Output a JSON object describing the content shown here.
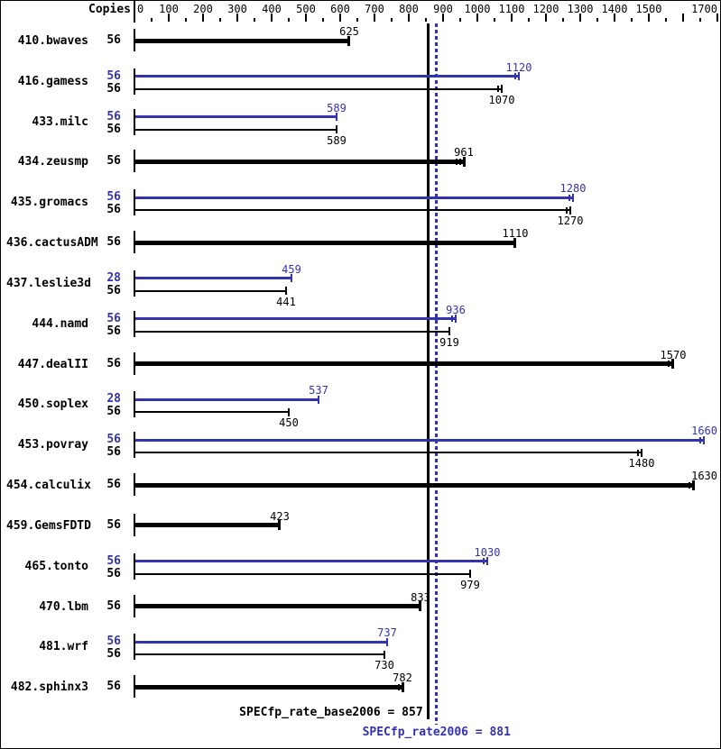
{
  "header": {
    "copies_label": "Copies"
  },
  "colors": {
    "base": "#000000",
    "peak": "#3333b0"
  },
  "chart_data": {
    "type": "bar",
    "title": "SPECfp_rate2006 benchmark result graph",
    "xlabel": "",
    "ylabel": "",
    "xlim": [
      0,
      1700
    ],
    "axis": {
      "min": 0,
      "max": 1700,
      "major_step": 100,
      "minor_step": 50,
      "suppressed_labels": [
        1600
      ],
      "grid": false
    },
    "legend_position": "none",
    "benchmarks": [
      {
        "name": "410.bwaves",
        "bars": [
          {
            "kind": "single",
            "copies": "56",
            "value": 625,
            "extra_ticks": 0
          }
        ]
      },
      {
        "name": "416.gamess",
        "bars": [
          {
            "kind": "peak",
            "copies": "56",
            "value": 1120,
            "extra_ticks": 1
          },
          {
            "kind": "base",
            "copies": "56",
            "value": 1070,
            "extra_ticks": 1
          }
        ]
      },
      {
        "name": "433.milc",
        "bars": [
          {
            "kind": "peak",
            "copies": "56",
            "value": 589,
            "extra_ticks": 0
          },
          {
            "kind": "base",
            "copies": "56",
            "value": 589,
            "extra_ticks": 0
          }
        ]
      },
      {
        "name": "434.zeusmp",
        "bars": [
          {
            "kind": "single",
            "copies": "56",
            "value": 961,
            "extra_ticks": 2
          }
        ]
      },
      {
        "name": "435.gromacs",
        "bars": [
          {
            "kind": "peak",
            "copies": "56",
            "value": 1280,
            "extra_ticks": 1
          },
          {
            "kind": "base",
            "copies": "56",
            "value": 1270,
            "extra_ticks": 1
          }
        ]
      },
      {
        "name": "436.cactusADM",
        "bars": [
          {
            "kind": "single",
            "copies": "56",
            "value": 1110,
            "extra_ticks": 0
          }
        ]
      },
      {
        "name": "437.leslie3d",
        "bars": [
          {
            "kind": "peak",
            "copies": "28",
            "value": 459,
            "extra_ticks": 0
          },
          {
            "kind": "base",
            "copies": "56",
            "value": 441,
            "extra_ticks": 0
          }
        ]
      },
      {
        "name": "444.namd",
        "bars": [
          {
            "kind": "peak",
            "copies": "56",
            "value": 936,
            "extra_ticks": 1
          },
          {
            "kind": "base",
            "copies": "56",
            "value": 919,
            "extra_ticks": 0
          }
        ]
      },
      {
        "name": "447.dealII",
        "bars": [
          {
            "kind": "single",
            "copies": "56",
            "value": 1570,
            "extra_ticks": 1
          }
        ]
      },
      {
        "name": "450.soplex",
        "bars": [
          {
            "kind": "peak",
            "copies": "28",
            "value": 537,
            "extra_ticks": 0
          },
          {
            "kind": "base",
            "copies": "56",
            "value": 450,
            "extra_ticks": 0
          }
        ]
      },
      {
        "name": "453.povray",
        "bars": [
          {
            "kind": "peak",
            "copies": "56",
            "value": 1660,
            "extra_ticks": 1
          },
          {
            "kind": "base",
            "copies": "56",
            "value": 1480,
            "extra_ticks": 1
          }
        ]
      },
      {
        "name": "454.calculix",
        "bars": [
          {
            "kind": "single",
            "copies": "56",
            "value": 1630,
            "extra_ticks": 1
          }
        ]
      },
      {
        "name": "459.GemsFDTD",
        "bars": [
          {
            "kind": "single",
            "copies": "56",
            "value": 423,
            "extra_ticks": 0
          }
        ]
      },
      {
        "name": "465.tonto",
        "bars": [
          {
            "kind": "peak",
            "copies": "56",
            "value": 1030,
            "extra_ticks": 1
          },
          {
            "kind": "base",
            "copies": "56",
            "value": 979,
            "extra_ticks": 0
          }
        ]
      },
      {
        "name": "470.lbm",
        "bars": [
          {
            "kind": "single",
            "copies": "56",
            "value": 833,
            "extra_ticks": 0
          }
        ]
      },
      {
        "name": "481.wrf",
        "bars": [
          {
            "kind": "peak",
            "copies": "56",
            "value": 737,
            "extra_ticks": 0
          },
          {
            "kind": "base",
            "copies": "56",
            "value": 730,
            "extra_ticks": 0
          }
        ]
      },
      {
        "name": "482.sphinx3",
        "bars": [
          {
            "kind": "single",
            "copies": "56",
            "value": 782,
            "extra_ticks": 1
          }
        ]
      }
    ],
    "reference_lines": [
      {
        "name": "base",
        "value": 857,
        "style": "solid",
        "color": "#000000",
        "label": "SPECfp_rate_base2006 = 857"
      },
      {
        "name": "peak",
        "value": 881,
        "style": "dotted",
        "color": "#3333b0",
        "label": "SPECfp_rate2006 = 881"
      }
    ]
  },
  "footer": {
    "base_label": "SPECfp_rate_base2006 = 857",
    "peak_label": "SPECfp_rate2006 = 881"
  }
}
